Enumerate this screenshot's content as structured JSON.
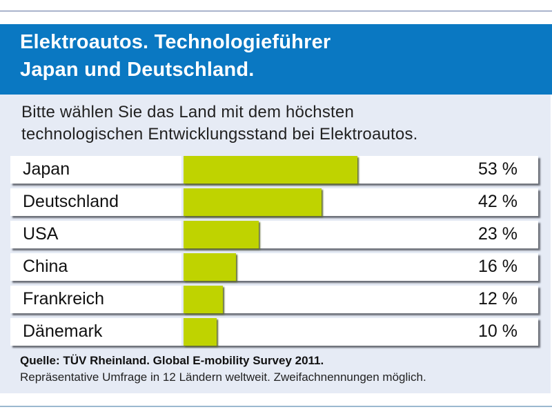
{
  "title_lines": [
    "Elektroautos. Technologieführer",
    "Japan und Deutschland."
  ],
  "question_lines": [
    "Bitte wählen Sie das Land mit dem höchsten",
    "technologischen Entwicklungsstand bei Elektroautos."
  ],
  "source_line": "Quelle: TÜV Rheinland. Global E-mobility Survey 2011.",
  "note_line": "Repräsentative Umfrage in 12 Ländern weltweit. Zweifachnennungen möglich.",
  "colors": {
    "header": "#0a78c2",
    "bar": "#bfd300",
    "panel": "#e6ebf5"
  },
  "chart_data": {
    "type": "bar",
    "orientation": "horizontal",
    "title": "Elektroautos. Technologieführer Japan und Deutschland.",
    "subtitle": "Bitte wählen Sie das Land mit dem höchsten technologischen Entwicklungsstand bei Elektroautos.",
    "categories": [
      "Japan",
      "Deutschland",
      "USA",
      "China",
      "Frankreich",
      "Dänemark"
    ],
    "values": [
      53,
      42,
      23,
      16,
      12,
      10
    ],
    "value_labels": [
      "53 %",
      "42 %",
      "23 %",
      "16 %",
      "12 %",
      "10 %"
    ],
    "unit": "%",
    "xlim": [
      0,
      100
    ],
    "grid": false,
    "legend": "none"
  }
}
